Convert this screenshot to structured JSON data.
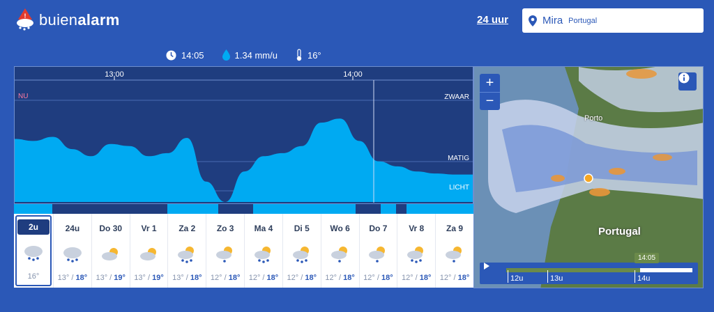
{
  "app": {
    "logo_light": "buien",
    "logo_bold": "alarm"
  },
  "header": {
    "range_link": "24 uur"
  },
  "location": {
    "city": "Mira",
    "country": "Portugal"
  },
  "stats": {
    "time": "14:05",
    "rain_rate": "1.34 mm/u",
    "temperature": "16°"
  },
  "chart": {
    "time_labels": [
      "13:00",
      "14:00"
    ],
    "now_label": "NU",
    "level_labels": {
      "heavy": "ZWAAR",
      "moderate": "MATIG",
      "light": "LICHT"
    }
  },
  "chart_data": {
    "type": "area",
    "x": [
      "12:35",
      "12:40",
      "12:45",
      "12:50",
      "12:55",
      "13:00",
      "13:05",
      "13:10",
      "13:15",
      "13:20",
      "13:25",
      "13:30",
      "13:35",
      "13:40",
      "13:45",
      "13:50",
      "13:55",
      "14:00",
      "14:05",
      "14:10",
      "14:15",
      "14:20",
      "14:25",
      "14:30",
      "14:35"
    ],
    "values": [
      0.62,
      0.6,
      0.64,
      0.52,
      0.45,
      0.57,
      0.55,
      0.45,
      0.48,
      0.63,
      0.2,
      0.0,
      0.3,
      0.45,
      0.48,
      0.55,
      0.78,
      0.82,
      0.6,
      0.4,
      0.35,
      0.3,
      0.28,
      0.27,
      0.27
    ],
    "level_lines": [
      "ZWAAR",
      "MATIG",
      "LICHT"
    ],
    "xlabel": "",
    "ylabel": ""
  },
  "days": [
    {
      "label": "2u",
      "low": "16°",
      "high": "",
      "icon": "rain-cloud-icon",
      "active": true
    },
    {
      "label": "24u",
      "low": "13°",
      "high": "18°",
      "icon": "rain-cloud-icon"
    },
    {
      "label": "Do 30",
      "low": "13°",
      "high": "19°",
      "icon": "partly-sunny-icon"
    },
    {
      "label": "Vr 1",
      "low": "13°",
      "high": "19°",
      "icon": "partly-sunny-icon"
    },
    {
      "label": "Za 2",
      "low": "13°",
      "high": "18°",
      "icon": "sun-rain-icon"
    },
    {
      "label": "Zo 3",
      "low": "12°",
      "high": "18°",
      "icon": "sun-light-rain-icon"
    },
    {
      "label": "Ma 4",
      "low": "12°",
      "high": "18°",
      "icon": "sun-rain-icon"
    },
    {
      "label": "Di 5",
      "low": "12°",
      "high": "18°",
      "icon": "sun-rain-icon"
    },
    {
      "label": "Wo 6",
      "low": "12°",
      "high": "18°",
      "icon": "sun-light-rain-icon"
    },
    {
      "label": "Do 7",
      "low": "12°",
      "high": "18°",
      "icon": "sun-light-rain-icon"
    },
    {
      "label": "Vr 8",
      "low": "12°",
      "high": "18°",
      "icon": "sun-rain-icon"
    },
    {
      "label": "Za 9",
      "low": "12°",
      "high": "18°",
      "icon": "sun-light-rain-icon"
    }
  ],
  "map": {
    "country_label": "Portugal",
    "city_label": "Porto",
    "timeline": {
      "current": "14:05",
      "ticks": [
        "12u",
        "13u",
        "14u"
      ],
      "progress": 0.72
    }
  },
  "colors": {
    "accent": "#2b58b7",
    "rain": "#00aaf2",
    "dark": "#1f3d7f"
  }
}
